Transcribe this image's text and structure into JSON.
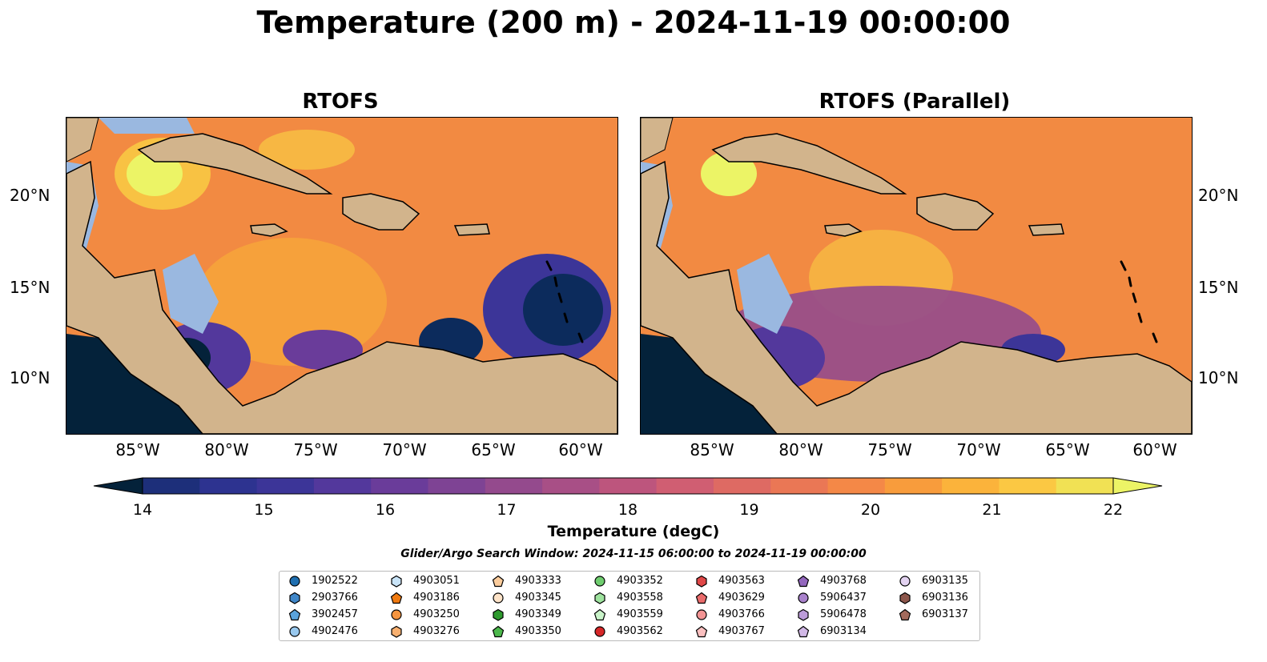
{
  "title": "Temperature (200 m) - 2024-11-19 00:00:00",
  "panels": [
    {
      "title": "RTOFS"
    },
    {
      "title": "RTOFS (Parallel)"
    }
  ],
  "map": {
    "lon_ticks": [
      "85°W",
      "80°W",
      "75°W",
      "70°W",
      "65°W",
      "60°W"
    ],
    "lat_ticks": [
      "20°N",
      "15°N",
      "10°N"
    ],
    "land_color": "#d2b48c",
    "shelf_color": "#9ab8e0"
  },
  "colorbar": {
    "label": "Temperature (degC)",
    "ticks": [
      "14",
      "15",
      "16",
      "17",
      "18",
      "19",
      "20",
      "21",
      "22"
    ],
    "colormap": [
      "#04223a",
      "#0c2b5c",
      "#1d2f7a",
      "#2d3390",
      "#3c3598",
      "#53389c",
      "#6a3c9a",
      "#7e4394",
      "#944a8d",
      "#a84f86",
      "#bd557d",
      "#d05e72",
      "#de6a63",
      "#ea7755",
      "#f48847",
      "#f89c3c",
      "#fbb33b",
      "#fbc843",
      "#f1e154",
      "#ecf466"
    ]
  },
  "search_window": "Glider/Argo Search Window: 2024-11-15 06:00:00 to 2024-11-19 00:00:00",
  "legend": [
    {
      "id": "1902522",
      "color": "#1f6fb0",
      "marker": "circle"
    },
    {
      "id": "2903766",
      "color": "#3f86c8",
      "marker": "hexagon"
    },
    {
      "id": "3902457",
      "color": "#5aa3dc",
      "marker": "pentagon"
    },
    {
      "id": "4902476",
      "color": "#98c8ee",
      "marker": "circle"
    },
    {
      "id": "4903051",
      "color": "#c9e4f8",
      "marker": "hexagon"
    },
    {
      "id": "4903186",
      "color": "#f07a10",
      "marker": "pentagon"
    },
    {
      "id": "4903250",
      "color": "#f59540",
      "marker": "circle"
    },
    {
      "id": "4903276",
      "color": "#f8b070",
      "marker": "hexagon"
    },
    {
      "id": "4903333",
      "color": "#fbcc9c",
      "marker": "pentagon"
    },
    {
      "id": "4903345",
      "color": "#fde3c8",
      "marker": "circle"
    },
    {
      "id": "4903349",
      "color": "#2e9a2e",
      "marker": "hexagon"
    },
    {
      "id": "4903350",
      "color": "#4cb84c",
      "marker": "pentagon"
    },
    {
      "id": "4903352",
      "color": "#6fcd6f",
      "marker": "circle"
    },
    {
      "id": "4903558",
      "color": "#9ee39e",
      "marker": "hexagon"
    },
    {
      "id": "4903559",
      "color": "#c9f3c9",
      "marker": "pentagon"
    },
    {
      "id": "4903562",
      "color": "#d62728",
      "marker": "circle"
    },
    {
      "id": "4903563",
      "color": "#e04848",
      "marker": "hexagon"
    },
    {
      "id": "4903629",
      "color": "#ea6c6c",
      "marker": "pentagon"
    },
    {
      "id": "4903766",
      "color": "#f39494",
      "marker": "circle"
    },
    {
      "id": "4903767",
      "color": "#fbc0c0",
      "marker": "pentagon"
    },
    {
      "id": "4903768",
      "color": "#9367bd",
      "marker": "pentagon"
    },
    {
      "id": "5906437",
      "color": "#a982cc",
      "marker": "circle"
    },
    {
      "id": "5906478",
      "color": "#bc9cd9",
      "marker": "hexagon"
    },
    {
      "id": "6903134",
      "color": "#d1b8e6",
      "marker": "pentagon"
    },
    {
      "id": "6903135",
      "color": "#e3d3f1",
      "marker": "circle"
    },
    {
      "id": "6903136",
      "color": "#8c564b",
      "marker": "hexagon"
    },
    {
      "id": "6903137",
      "color": "#a36a5c",
      "marker": "pentagon"
    }
  ]
}
